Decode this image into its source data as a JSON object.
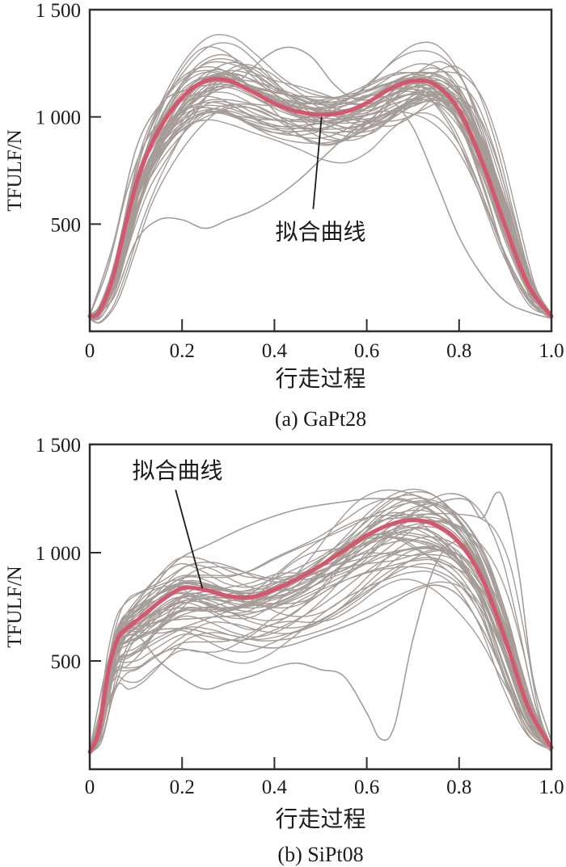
{
  "figure": {
    "colors": {
      "fit": "#d5576e",
      "ensemble": "#a59c98",
      "axis": "#2e2e2e",
      "text": "#1b1b1b",
      "leader_line": "#1b1b1b",
      "background": "#ffffff"
    }
  },
  "chart_data": [
    {
      "id": "panel-a",
      "type": "line",
      "caption": "(a) GaPt28",
      "xlabel": "行走过程",
      "ylabel": "TFULF/N",
      "xlim": [
        0,
        1.0
      ],
      "ylim": [
        0,
        1500
      ],
      "grid": false,
      "legend": "none (annotated with leader line)",
      "x_ticks": [
        0,
        0.2,
        0.4,
        0.6,
        0.8,
        1.0
      ],
      "x_tick_labels": [
        "0",
        "0.2",
        "0.4",
        "0.6",
        "0.8",
        "1.0"
      ],
      "y_ticks": [
        500,
        1000,
        1500
      ],
      "y_tick_labels": [
        "500",
        "1 000",
        "1 500"
      ],
      "annotation": {
        "label": "拟合曲线",
        "text_xy": [
          0.5,
          465
        ],
        "leader": [
          [
            0.502,
            1000
          ],
          [
            0.484,
            570
          ]
        ]
      },
      "series": [
        {
          "name": "拟合曲线",
          "role": "fit",
          "x": [
            0,
            0.02,
            0.05,
            0.08,
            0.11,
            0.15,
            0.2,
            0.25,
            0.3,
            0.35,
            0.4,
            0.45,
            0.5,
            0.55,
            0.6,
            0.65,
            0.7,
            0.75,
            0.8,
            0.85,
            0.9,
            0.95,
            1.0
          ],
          "y": [
            70,
            90,
            250,
            520,
            750,
            940,
            1090,
            1168,
            1170,
            1120,
            1063,
            1025,
            1010,
            1022,
            1065,
            1130,
            1168,
            1148,
            1030,
            790,
            490,
            215,
            70
          ]
        },
        {
          "name": "individual gait cycle curves",
          "role": "ensemble",
          "count": 46,
          "seed": 7,
          "low_bias": 0.12,
          "outliers": [
            [
              [
                0,
                75
              ],
              [
                0.04,
                300
              ],
              [
                0.08,
                650
              ],
              [
                0.12,
                880
              ],
              [
                0.17,
                1020
              ],
              [
                0.22,
                1100
              ],
              [
                0.28,
                1130
              ],
              [
                0.32,
                1160
              ],
              [
                0.38,
                1280
              ],
              [
                0.43,
                1325
              ],
              [
                0.48,
                1280
              ],
              [
                0.53,
                1150
              ],
              [
                0.58,
                1080
              ],
              [
                0.65,
                1100
              ],
              [
                0.7,
                1130
              ],
              [
                0.75,
                1090
              ],
              [
                0.8,
                1000
              ],
              [
                0.85,
                780
              ],
              [
                0.9,
                480
              ],
              [
                0.95,
                200
              ],
              [
                1,
                65
              ]
            ],
            [
              [
                0,
                70
              ],
              [
                0.05,
                150
              ],
              [
                0.1,
                420
              ],
              [
                0.15,
                520
              ],
              [
                0.2,
                520
              ],
              [
                0.25,
                480
              ],
              [
                0.3,
                520
              ],
              [
                0.35,
                560
              ],
              [
                0.4,
                620
              ],
              [
                0.45,
                700
              ],
              [
                0.5,
                800
              ],
              [
                0.55,
                900
              ],
              [
                0.6,
                980
              ],
              [
                0.65,
                1020
              ],
              [
                0.7,
                1050
              ],
              [
                0.75,
                1080
              ],
              [
                0.8,
                1010
              ],
              [
                0.85,
                800
              ],
              [
                0.9,
                520
              ],
              [
                0.95,
                230
              ],
              [
                1,
                60
              ]
            ],
            [
              [
                0,
                75
              ],
              [
                0.05,
                400
              ],
              [
                0.1,
                850
              ],
              [
                0.15,
                1050
              ],
              [
                0.2,
                1120
              ],
              [
                0.3,
                1150
              ],
              [
                0.4,
                1050
              ],
              [
                0.5,
                1020
              ],
              [
                0.55,
                1050
              ],
              [
                0.6,
                1100
              ],
              [
                0.65,
                1080
              ],
              [
                0.7,
                950
              ],
              [
                0.75,
                700
              ],
              [
                0.8,
                440
              ],
              [
                0.85,
                260
              ],
              [
                0.9,
                140
              ],
              [
                0.95,
                90
              ],
              [
                1,
                60
              ]
            ]
          ]
        }
      ]
    },
    {
      "id": "panel-b",
      "type": "line",
      "caption": "(b) SiPt08",
      "xlabel": "行走过程",
      "ylabel": "TFULF/N",
      "xlim": [
        0,
        1.0
      ],
      "ylim": [
        0,
        1500
      ],
      "grid": false,
      "legend": "none (annotated with leader line)",
      "x_ticks": [
        0,
        0.2,
        0.4,
        0.6,
        0.8,
        1.0
      ],
      "x_tick_labels": [
        "0",
        "0.2",
        "0.4",
        "0.6",
        "0.8",
        "1.0"
      ],
      "y_ticks": [
        500,
        1000,
        1500
      ],
      "y_tick_labels": [
        "500",
        "1 000",
        "1 500"
      ],
      "annotation": {
        "label": "拟合曲线",
        "text_xy": [
          0.19,
          1380
        ],
        "leader": [
          [
            0.186,
            1290
          ],
          [
            0.244,
            835
          ]
        ]
      },
      "series": [
        {
          "name": "拟合曲线",
          "role": "fit",
          "x": [
            0,
            0.02,
            0.04,
            0.06,
            0.08,
            0.11,
            0.15,
            0.2,
            0.25,
            0.3,
            0.35,
            0.4,
            0.45,
            0.5,
            0.55,
            0.6,
            0.65,
            0.7,
            0.75,
            0.8,
            0.85,
            0.9,
            0.95,
            1.0
          ],
          "y": [
            80,
            180,
            450,
            600,
            650,
            700,
            770,
            835,
            828,
            800,
            795,
            830,
            880,
            940,
            1010,
            1080,
            1130,
            1150,
            1128,
            1048,
            880,
            600,
            285,
            100
          ]
        },
        {
          "name": "individual gait cycle curves",
          "role": "ensemble",
          "count": 46,
          "seed": 13,
          "low_bias": 0.25,
          "outliers": [
            [
              [
                0,
                90
              ],
              [
                0.03,
                300
              ],
              [
                0.06,
                560
              ],
              [
                0.1,
                620
              ],
              [
                0.15,
                500
              ],
              [
                0.2,
                420
              ],
              [
                0.25,
                370
              ],
              [
                0.3,
                400
              ],
              [
                0.35,
                430
              ],
              [
                0.4,
                470
              ],
              [
                0.45,
                490
              ],
              [
                0.5,
                460
              ],
              [
                0.55,
                430
              ],
              [
                0.6,
                260
              ],
              [
                0.63,
                140
              ],
              [
                0.66,
                200
              ],
              [
                0.7,
                600
              ],
              [
                0.75,
                950
              ],
              [
                0.8,
                1050
              ],
              [
                0.85,
                900
              ],
              [
                0.9,
                550
              ],
              [
                0.95,
                250
              ],
              [
                1,
                90
              ]
            ],
            [
              [
                0,
                80
              ],
              [
                0.04,
                400
              ],
              [
                0.08,
                620
              ],
              [
                0.15,
                680
              ],
              [
                0.25,
                700
              ],
              [
                0.35,
                720
              ],
              [
                0.45,
                800
              ],
              [
                0.55,
                950
              ],
              [
                0.65,
                1120
              ],
              [
                0.72,
                1200
              ],
              [
                0.78,
                1245
              ],
              [
                0.82,
                1240
              ],
              [
                0.85,
                1160
              ],
              [
                0.88,
                1275
              ],
              [
                0.9,
                1220
              ],
              [
                0.93,
                900
              ],
              [
                0.96,
                420
              ],
              [
                1,
                130
              ]
            ],
            [
              [
                0,
                85
              ],
              [
                0.04,
                500
              ],
              [
                0.08,
                680
              ],
              [
                0.12,
                780
              ],
              [
                0.16,
                900
              ],
              [
                0.2,
                980
              ],
              [
                0.26,
                1040
              ],
              [
                0.35,
                1130
              ],
              [
                0.45,
                1200
              ],
              [
                0.55,
                1235
              ],
              [
                0.62,
                1250
              ],
              [
                0.7,
                1230
              ],
              [
                0.78,
                1130
              ],
              [
                0.85,
                930
              ],
              [
                0.9,
                640
              ],
              [
                0.95,
                300
              ],
              [
                1,
                100
              ]
            ],
            [
              [
                0,
                80
              ],
              [
                0.05,
                350
              ],
              [
                0.1,
                600
              ],
              [
                0.2,
                650
              ],
              [
                0.3,
                600
              ],
              [
                0.4,
                560
              ],
              [
                0.5,
                620
              ],
              [
                0.6,
                700
              ],
              [
                0.65,
                760
              ],
              [
                0.7,
                820
              ],
              [
                0.75,
                850
              ],
              [
                0.8,
                800
              ],
              [
                0.85,
                650
              ],
              [
                0.9,
                420
              ],
              [
                0.95,
                200
              ],
              [
                1,
                80
              ]
            ]
          ]
        }
      ]
    }
  ]
}
